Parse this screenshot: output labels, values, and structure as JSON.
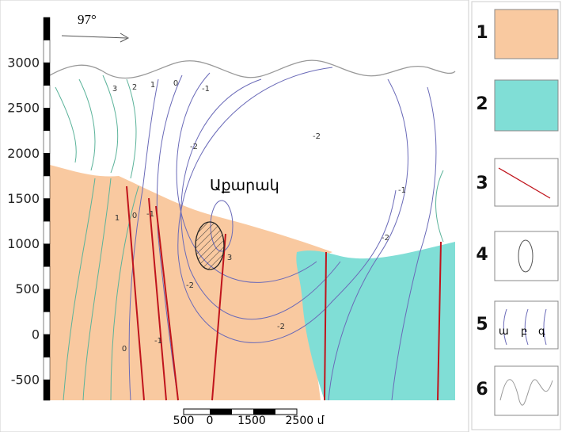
{
  "figure": {
    "direction": "97°",
    "place_name": "Աքարակ",
    "y_axis": {
      "ticks": [
        3000,
        2500,
        2000,
        1500,
        1000,
        500,
        0,
        -500
      ]
    },
    "contour_labels": [
      "3",
      "2",
      "1",
      "0",
      "-1",
      "-2",
      "-2",
      "-1",
      "-2",
      "-2",
      "1",
      "0",
      "-1",
      "3",
      "0",
      "-1",
      "-2"
    ],
    "scale_bar": [
      "500",
      "0",
      "1500",
      "2500 մ"
    ]
  },
  "legend": {
    "items": [
      {
        "number": "1"
      },
      {
        "number": "2"
      },
      {
        "number": "3"
      },
      {
        "number": "4"
      },
      {
        "number": "5",
        "sublabels": [
          "ա",
          "բ",
          "գ"
        ]
      },
      {
        "number": "6"
      }
    ]
  }
}
